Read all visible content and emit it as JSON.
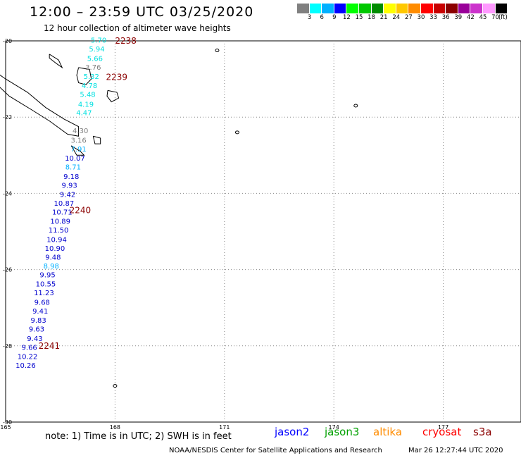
{
  "header": {
    "title": "12:00 – 23:59 UTC 03/25/2020",
    "subtitle": "12 hour collection of altimeter wave heights"
  },
  "scale": {
    "colors": [
      "#808080",
      "#00ffff",
      "#00b0ff",
      "#0000ff",
      "#00ff00",
      "#00c800",
      "#008c00",
      "#ffff00",
      "#ffc800",
      "#ff8c00",
      "#ff0000",
      "#c80000",
      "#8b0000",
      "#990099",
      "#cc33cc",
      "#ff99ff",
      "#000000"
    ],
    "labels": [
      "3",
      "6",
      "9",
      "12",
      "15",
      "18",
      "21",
      "24",
      "27",
      "30",
      "33",
      "36",
      "39",
      "42",
      "45",
      "70",
      "(ft)"
    ]
  },
  "map": {
    "lat_labels": [
      "-20",
      "-22",
      "-24",
      "-26",
      "-28",
      "-30"
    ],
    "lon_labels": [
      "165",
      "168",
      "171",
      "174",
      "177"
    ],
    "time_labels": [
      {
        "text": "2238",
        "lon": 168.0,
        "lat": -20.0
      },
      {
        "text": "2239",
        "lon": 167.75,
        "lat": -20.95
      },
      {
        "text": "2240",
        "lon": 166.75,
        "lat": -24.45
      },
      {
        "text": "2241",
        "lon": 165.9,
        "lat": -28.0
      }
    ],
    "wave_heights": [
      {
        "v": "5.70",
        "lon": 167.55,
        "lat": -19.97,
        "c": "#00e0e0"
      },
      {
        "v": "5.94",
        "lon": 167.5,
        "lat": -20.2,
        "c": "#00e0e0"
      },
      {
        "v": "5.66",
        "lon": 167.45,
        "lat": -20.45,
        "c": "#00e0e0"
      },
      {
        "v": "3.76",
        "lon": 167.4,
        "lat": -20.68,
        "c": "#808080"
      },
      {
        "v": "5.32",
        "lon": 167.35,
        "lat": -20.92,
        "c": "#00e0e0"
      },
      {
        "v": "4.78",
        "lon": 167.3,
        "lat": -21.16,
        "c": "#00e0e0"
      },
      {
        "v": "5.48",
        "lon": 167.25,
        "lat": -21.4,
        "c": "#00e0e0"
      },
      {
        "v": "4.19",
        "lon": 167.2,
        "lat": -21.65,
        "c": "#00e0e0"
      },
      {
        "v": "4.47",
        "lon": 167.15,
        "lat": -21.88,
        "c": "#00e0e0"
      },
      {
        "v": "4.30",
        "lon": 167.05,
        "lat": -22.35,
        "c": "#808080"
      },
      {
        "v": "3.16",
        "lon": 167.0,
        "lat": -22.6,
        "c": "#808080"
      },
      {
        "v": "7.91",
        "lon": 167.0,
        "lat": -22.83,
        "c": "#00b0ff"
      },
      {
        "v": "10.07",
        "lon": 166.9,
        "lat": -23.07,
        "c": "#0000cd"
      },
      {
        "v": "8.71",
        "lon": 166.85,
        "lat": -23.3,
        "c": "#00b0ff"
      },
      {
        "v": "9.18",
        "lon": 166.8,
        "lat": -23.55,
        "c": "#0000cd"
      },
      {
        "v": "9.93",
        "lon": 166.75,
        "lat": -23.78,
        "c": "#0000cd"
      },
      {
        "v": "9.42",
        "lon": 166.7,
        "lat": -24.02,
        "c": "#0000cd"
      },
      {
        "v": "10.87",
        "lon": 166.6,
        "lat": -24.25,
        "c": "#0000cd"
      },
      {
        "v": "10.71",
        "lon": 166.55,
        "lat": -24.48,
        "c": "#0000cd"
      },
      {
        "v": "10.89",
        "lon": 166.5,
        "lat": -24.72,
        "c": "#0000cd"
      },
      {
        "v": "11.50",
        "lon": 166.45,
        "lat": -24.95,
        "c": "#0000cd"
      },
      {
        "v": "10.94",
        "lon": 166.4,
        "lat": -25.2,
        "c": "#0000cd"
      },
      {
        "v": "10.90",
        "lon": 166.35,
        "lat": -25.43,
        "c": "#0000cd"
      },
      {
        "v": "9.48",
        "lon": 166.3,
        "lat": -25.67,
        "c": "#0000cd"
      },
      {
        "v": "8.98",
        "lon": 166.25,
        "lat": -25.9,
        "c": "#00b0ff"
      },
      {
        "v": "9.95",
        "lon": 166.15,
        "lat": -26.13,
        "c": "#0000cd"
      },
      {
        "v": "10.55",
        "lon": 166.1,
        "lat": -26.37,
        "c": "#0000cd"
      },
      {
        "v": "11.23",
        "lon": 166.05,
        "lat": -26.6,
        "c": "#0000cd"
      },
      {
        "v": "9.68",
        "lon": 166.0,
        "lat": -26.85,
        "c": "#0000cd"
      },
      {
        "v": "9.41",
        "lon": 165.95,
        "lat": -27.08,
        "c": "#0000cd"
      },
      {
        "v": "9.83",
        "lon": 165.9,
        "lat": -27.32,
        "c": "#0000cd"
      },
      {
        "v": "9.63",
        "lon": 165.85,
        "lat": -27.55,
        "c": "#0000cd"
      },
      {
        "v": "9.43",
        "lon": 165.8,
        "lat": -27.8,
        "c": "#0000cd"
      },
      {
        "v": "9.66",
        "lon": 165.65,
        "lat": -28.03,
        "c": "#0000cd"
      },
      {
        "v": "10.22",
        "lon": 165.6,
        "lat": -28.27,
        "c": "#0000cd"
      },
      {
        "v": "10.26",
        "lon": 165.55,
        "lat": -28.5,
        "c": "#0000cd"
      }
    ]
  },
  "footer": {
    "note": "note: 1) Time is in UTC; 2) SWH is in feet",
    "satellites": [
      {
        "name": "jason2",
        "color": "#0000ff"
      },
      {
        "name": "jason3",
        "color": "#00a000"
      },
      {
        "name": "altika",
        "color": "#ff8c00"
      },
      {
        "name": "cryosat",
        "color": "#ff0000"
      },
      {
        "name": "s3a",
        "color": "#8b0000"
      }
    ],
    "credit": "NOAA/NESDIS Center for Satellite Applications and Research",
    "timestamp": "Mar 26 12:27:44 UTC 2020"
  }
}
